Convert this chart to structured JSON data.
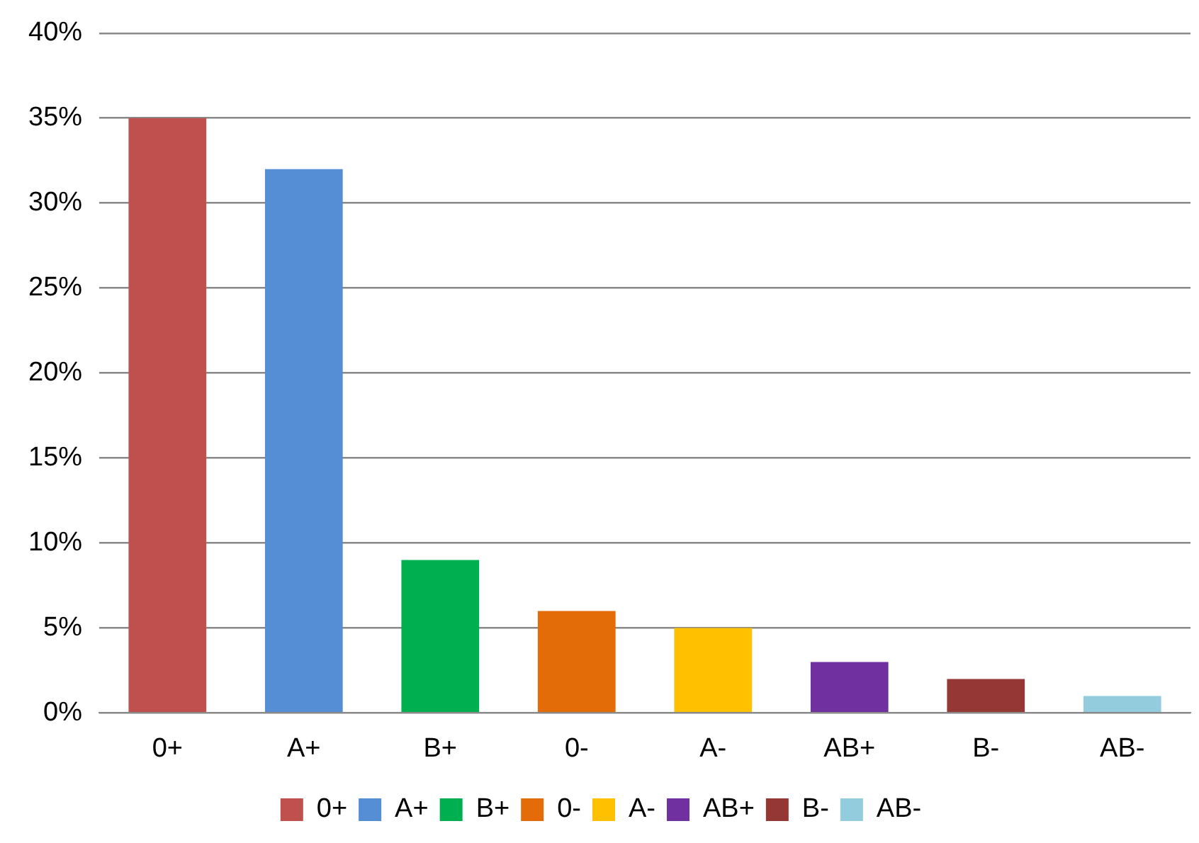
{
  "chart_data": {
    "type": "bar",
    "categories": [
      "0+",
      "A+",
      "B+",
      "0-",
      "A-",
      "AB+",
      "B-",
      "AB-"
    ],
    "series": [
      {
        "name": "0+",
        "color": "#c0504d",
        "values": [
          35,
          null,
          null,
          null,
          null,
          null,
          null,
          null
        ]
      },
      {
        "name": "A+",
        "color": "#558ed5",
        "values": [
          null,
          32,
          null,
          null,
          null,
          null,
          null,
          null
        ]
      },
      {
        "name": "B+",
        "color": "#00b050",
        "values": [
          null,
          null,
          9,
          null,
          null,
          null,
          null,
          null
        ]
      },
      {
        "name": "0-",
        "color": "#e36c09",
        "values": [
          null,
          null,
          null,
          6,
          null,
          null,
          null,
          null
        ]
      },
      {
        "name": "A-",
        "color": "#ffc000",
        "values": [
          null,
          null,
          null,
          null,
          5,
          null,
          null,
          null
        ]
      },
      {
        "name": "AB+",
        "color": "#7030a0",
        "values": [
          null,
          null,
          null,
          null,
          null,
          3,
          null,
          null
        ]
      },
      {
        "name": "B-",
        "color": "#953735",
        "values": [
          null,
          null,
          null,
          null,
          null,
          null,
          2,
          null
        ]
      },
      {
        "name": "AB-",
        "color": "#93cddd",
        "values": [
          null,
          null,
          null,
          null,
          null,
          null,
          null,
          1
        ]
      }
    ],
    "ylim": [
      0,
      40
    ],
    "yticks": [
      {
        "value": 0,
        "label": "0%"
      },
      {
        "value": 5,
        "label": "5%"
      },
      {
        "value": 10,
        "label": "10%"
      },
      {
        "value": 15,
        "label": "15%"
      },
      {
        "value": 20,
        "label": "20%"
      },
      {
        "value": 25,
        "label": "25%"
      },
      {
        "value": 30,
        "label": "30%"
      },
      {
        "value": 35,
        "label": "35%"
      },
      {
        "value": 40,
        "label": "40%"
      }
    ],
    "grid": "y",
    "legend": "bottom"
  }
}
